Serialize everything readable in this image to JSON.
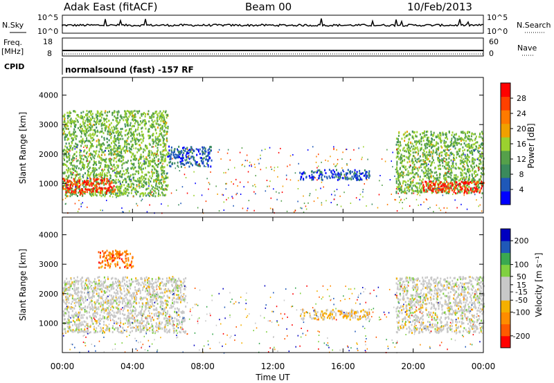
{
  "header": {
    "title": "Adak East (fitACF)",
    "beam": "Beam 00",
    "date": "10/Feb/2013"
  },
  "colors": {
    "axis": "#000000",
    "power_scale": [
      "#0000ff",
      "#1f58b8",
      "#3a8a5c",
      "#55a04a",
      "#9bd12f",
      "#f0a000",
      "#ff7a00",
      "#ff4000",
      "#ff0000"
    ],
    "velocity_scale": [
      "#ff0000",
      "#ff5a00",
      "#ff8c00",
      "#f4b000",
      "#c8c8c8",
      "#c8c8c8",
      "#80d040",
      "#3aa850",
      "#1f58b8",
      "#0000c0"
    ]
  },
  "panels": {
    "nsky": {
      "label": "N.Sky",
      "ticks": [
        "10^5",
        "10^0"
      ],
      "right_label": "N.Search",
      "right_ticks": [
        "10^5",
        "10^0"
      ]
    },
    "freq": {
      "label": "Freq.",
      "unit": "[MHz]",
      "ticks": [
        "18",
        "8"
      ],
      "right_label": "Nave",
      "right_ticks": [
        "60",
        "0"
      ]
    },
    "cpid": {
      "label": "CPID",
      "text": "normalsound (fast) -157 RF"
    }
  },
  "chart_data": [
    {
      "type": "heatmap",
      "name": "power",
      "ylabel": "Slant Range [km]",
      "yticks": [
        "1000",
        "2000",
        "3000",
        "4000"
      ],
      "ylim": [
        0,
        4600
      ],
      "colorbar": {
        "label": "Power [dB]",
        "ticks": [
          "4",
          "8",
          "12",
          "16",
          "20",
          "24",
          "28"
        ],
        "range": [
          0,
          32
        ]
      },
      "regions": [
        {
          "t0": 0.0,
          "t1": 6.0,
          "r0": 600,
          "r1": 3500,
          "level": 14
        },
        {
          "t0": 0.0,
          "t1": 3.0,
          "r0": 700,
          "r1": 1200,
          "level": 28
        },
        {
          "t0": 6.0,
          "t1": 8.5,
          "r0": 1600,
          "r1": 2300,
          "level": 6
        },
        {
          "t0": 13.5,
          "t1": 17.5,
          "r0": 1150,
          "r1": 1500,
          "level": 5
        },
        {
          "t0": 19.0,
          "t1": 24.0,
          "r0": 700,
          "r1": 2800,
          "level": 14
        },
        {
          "t0": 20.5,
          "t1": 24.0,
          "r0": 700,
          "r1": 1100,
          "level": 28
        }
      ]
    },
    {
      "type": "heatmap",
      "name": "velocity",
      "xlabel": "Time UT",
      "ylabel": "Slant Range [km]",
      "yticks": [
        "1000",
        "2000",
        "3000",
        "4000"
      ],
      "ylim": [
        0,
        4600
      ],
      "xticks": [
        "00:00",
        "04:00",
        "08:00",
        "12:00",
        "16:00",
        "20:00",
        "00:00"
      ],
      "xlim": [
        0,
        24
      ],
      "colorbar": {
        "label": "Velocity [m s⁻¹]",
        "ticks": [
          "-200",
          "-100",
          "-50",
          "-15",
          "15",
          "50",
          "100",
          "200"
        ],
        "range": [
          -250,
          250
        ]
      },
      "regions": [
        {
          "t0": 0.0,
          "t1": 7.0,
          "r0": 700,
          "r1": 2600,
          "level": 0
        },
        {
          "t0": 2.0,
          "t1": 4.0,
          "r0": 2900,
          "r1": 3500,
          "level": -150
        },
        {
          "t0": 13.5,
          "t1": 17.5,
          "r0": 1150,
          "r1": 1500,
          "level": -60
        },
        {
          "t0": 19.0,
          "t1": 24.0,
          "r0": 700,
          "r1": 2600,
          "level": 0
        }
      ]
    }
  ]
}
